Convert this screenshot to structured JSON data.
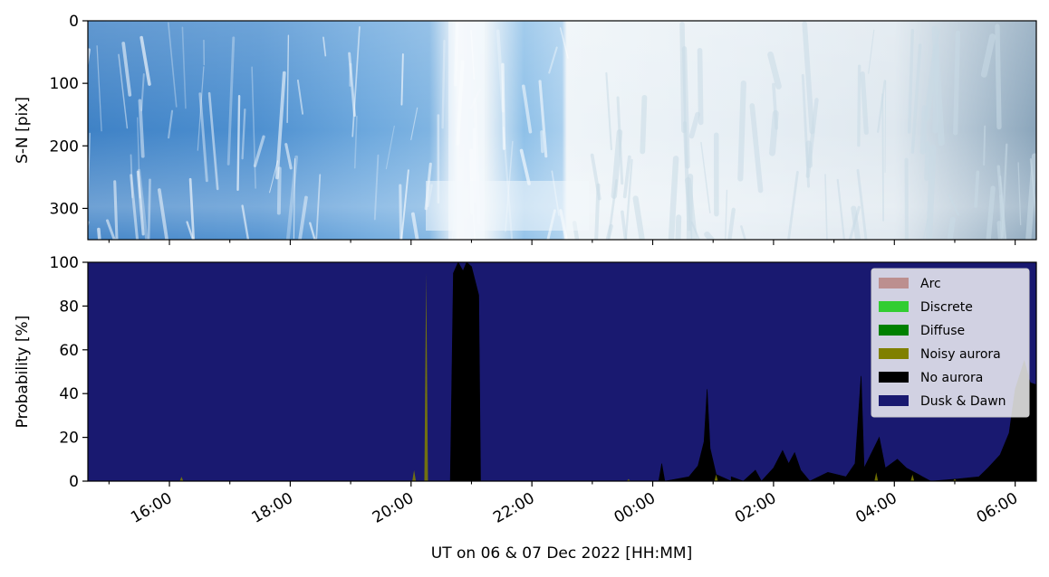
{
  "chart_data": [
    {
      "type": "heatmap",
      "panel": "keogram",
      "ylabel": "S-N [pix]",
      "ylim": [
        350,
        0
      ],
      "yticks": [
        "0",
        "100",
        "200",
        "300"
      ],
      "x_start_hours": 14.65,
      "x_end_hours": 30.35,
      "colors": {
        "left_blue": "#3a7fc4",
        "mid_blue": "#6aa6dc",
        "bright": "#f2f7fb",
        "right_pale": "#dde8f0",
        "right_grey": "#8ea8bd"
      },
      "note_band_hours": [
        20.7,
        21.2
      ]
    },
    {
      "type": "area",
      "panel": "probability",
      "ylabel": "Probability [%]",
      "xlabel": "UT on 06 & 07 Dec 2022 [HH:MM]",
      "ylim": [
        0,
        100
      ],
      "yticks": [
        "0",
        "20",
        "40",
        "60",
        "80",
        "100"
      ],
      "xlim_hours": [
        14.65,
        30.35
      ],
      "xticks": [
        {
          "hour": 16,
          "label": "16:00"
        },
        {
          "hour": 18,
          "label": "18:00"
        },
        {
          "hour": 20,
          "label": "20:00"
        },
        {
          "hour": 22,
          "label": "22:00"
        },
        {
          "hour": 24,
          "label": "00:00"
        },
        {
          "hour": 26,
          "label": "02:00"
        },
        {
          "hour": 28,
          "label": "04:00"
        },
        {
          "hour": 30,
          "label": "06:00"
        }
      ],
      "stack_order": [
        "Dusk & Dawn",
        "No aurora",
        "Noisy aurora",
        "Diffuse",
        "Discrete",
        "Arc"
      ],
      "series": [
        {
          "name": "Arc",
          "color": "#bc8f8f",
          "values": []
        },
        {
          "name": "Discrete",
          "color": "#32cd32",
          "values": []
        },
        {
          "name": "Diffuse",
          "color": "#008000",
          "values": []
        },
        {
          "name": "Noisy aurora",
          "color": "#808000",
          "values": [
            [
              16.2,
              2
            ],
            [
              20.05,
              5
            ],
            [
              20.25,
              95
            ],
            [
              23.6,
              1
            ],
            [
              25.05,
              3
            ],
            [
              27.7,
              4
            ],
            [
              28.3,
              3
            ],
            [
              29.0,
              1
            ]
          ]
        },
        {
          "name": "No aurora",
          "color": "#000000",
          "values": [
            [
              14.65,
              0
            ],
            [
              20.65,
              0
            ],
            [
              20.7,
              95
            ],
            [
              20.78,
              100
            ],
            [
              20.86,
              96
            ],
            [
              20.92,
              100
            ],
            [
              21.0,
              98
            ],
            [
              21.12,
              85
            ],
            [
              21.15,
              0
            ],
            [
              24.1,
              0
            ],
            [
              24.15,
              8
            ],
            [
              24.2,
              0
            ],
            [
              24.6,
              2
            ],
            [
              24.75,
              7
            ],
            [
              24.85,
              18
            ],
            [
              24.9,
              42
            ],
            [
              24.95,
              15
            ],
            [
              25.05,
              3
            ],
            [
              25.3,
              0
            ],
            [
              25.3,
              2
            ],
            [
              25.5,
              0
            ],
            [
              25.7,
              5
            ],
            [
              25.8,
              0
            ],
            [
              26.0,
              6
            ],
            [
              26.15,
              14
            ],
            [
              26.25,
              8
            ],
            [
              26.35,
              13
            ],
            [
              26.45,
              5
            ],
            [
              26.6,
              0
            ],
            [
              26.9,
              4
            ],
            [
              27.2,
              2
            ],
            [
              27.35,
              8
            ],
            [
              27.45,
              48
            ],
            [
              27.5,
              6
            ],
            [
              27.75,
              20
            ],
            [
              27.85,
              6
            ],
            [
              28.05,
              10
            ],
            [
              28.2,
              6
            ],
            [
              28.4,
              3
            ],
            [
              28.6,
              0
            ],
            [
              29.05,
              1
            ],
            [
              29.4,
              2
            ],
            [
              29.55,
              6
            ],
            [
              29.75,
              12
            ],
            [
              29.9,
              22
            ],
            [
              30.0,
              42
            ],
            [
              30.15,
              55
            ],
            [
              30.25,
              45
            ],
            [
              30.35,
              44
            ]
          ]
        },
        {
          "name": "Dusk & Dawn",
          "color": "#191970",
          "values": "remainder to 100"
        }
      ],
      "legend": {
        "placement": "top-right",
        "entries": [
          {
            "label": "Arc",
            "color": "#bc8f8f"
          },
          {
            "label": "Discrete",
            "color": "#32cd32"
          },
          {
            "label": "Diffuse",
            "color": "#008000"
          },
          {
            "label": "Noisy aurora",
            "color": "#808000"
          },
          {
            "label": "No aurora",
            "color": "#000000"
          },
          {
            "label": "Dusk & Dawn",
            "color": "#191970"
          }
        ]
      }
    }
  ]
}
